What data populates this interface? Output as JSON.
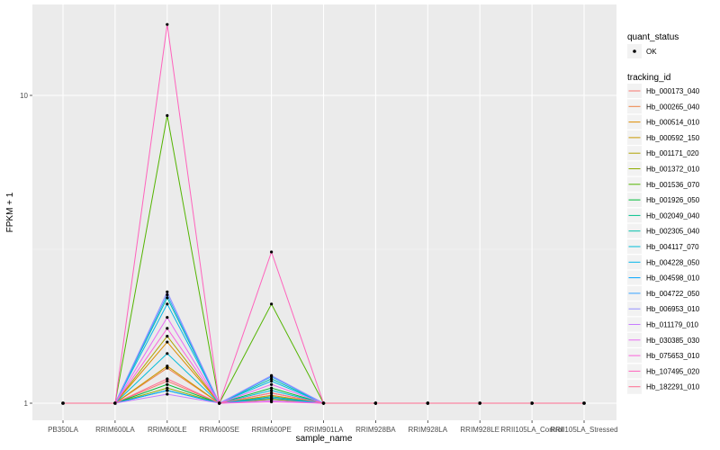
{
  "chart_data": {
    "type": "line",
    "xlabel": "sample_name",
    "ylabel": "FPKM + 1",
    "y_scale": "log10",
    "ylim": [
      0.9,
      17
    ],
    "y_ticks": [
      {
        "value": 1,
        "label": "1"
      },
      {
        "value": 10,
        "label": "10"
      }
    ],
    "grid": true,
    "legend_placement": "right",
    "categories": [
      "PB350LA",
      "RRIM600LA",
      "RRIM600LE",
      "RRIM600SE",
      "RRIM600PE",
      "RRIM901LA",
      "RRIM928BA",
      "RRIM928LA",
      "RRIM928LE",
      "RRII105LA_Control",
      "RRII105LA_Stressed"
    ],
    "point_legend": {
      "title": "quant_status",
      "entries": [
        "OK"
      ]
    },
    "line_legend_title": "tracking_id",
    "series": [
      {
        "name": "Hb_000173_040",
        "color": "#F8766D",
        "values": [
          1,
          1,
          1.18,
          1,
          1.03,
          1,
          1,
          1,
          1,
          1,
          1
        ]
      },
      {
        "name": "Hb_000265_040",
        "color": "#EE8043",
        "values": [
          1,
          1,
          1.3,
          1,
          1.04,
          1,
          1,
          1,
          1,
          1,
          1
        ]
      },
      {
        "name": "Hb_000514_010",
        "color": "#DE8C00",
        "values": [
          1,
          1,
          1.58,
          1,
          1.06,
          1,
          1,
          1,
          1,
          1,
          1
        ]
      },
      {
        "name": "Hb_000592_150",
        "color": "#C99800",
        "values": [
          1,
          1,
          1.32,
          1,
          1.05,
          1,
          1,
          1,
          1,
          1,
          1
        ]
      },
      {
        "name": "Hb_001171_020",
        "color": "#AFA100",
        "values": [
          1,
          1,
          1.65,
          1,
          1.08,
          1,
          1,
          1,
          1,
          1,
          1
        ]
      },
      {
        "name": "Hb_001372_010",
        "color": "#8EAB00",
        "values": [
          1,
          1,
          1.12,
          1,
          1.03,
          1,
          1,
          1,
          1,
          1,
          1
        ]
      },
      {
        "name": "Hb_001536_070",
        "color": "#53B400",
        "values": [
          1,
          1,
          8.6,
          1,
          2.1,
          1,
          1,
          1,
          1,
          1,
          1
        ]
      },
      {
        "name": "Hb_001926_050",
        "color": "#00BA38",
        "values": [
          1,
          1,
          1.15,
          1,
          1.12,
          1,
          1,
          1,
          1,
          1,
          1
        ]
      },
      {
        "name": "Hb_002049_040",
        "color": "#00C08B",
        "values": [
          1,
          1,
          1.1,
          1,
          1.05,
          1,
          1,
          1,
          1,
          1,
          1
        ]
      },
      {
        "name": "Hb_002305_040",
        "color": "#00BFAA",
        "values": [
          1,
          1,
          2.2,
          1,
          1.2,
          1,
          1,
          1,
          1,
          1,
          1
        ]
      },
      {
        "name": "Hb_004117_070",
        "color": "#00BCD8",
        "values": [
          1,
          1,
          1.45,
          1,
          1.1,
          1,
          1,
          1,
          1,
          1,
          1
        ]
      },
      {
        "name": "Hb_004228_050",
        "color": "#00B6EB",
        "values": [
          1,
          1,
          2.1,
          1,
          1.18,
          1,
          1,
          1,
          1,
          1,
          1
        ]
      },
      {
        "name": "Hb_004598_010",
        "color": "#00A5FF",
        "values": [
          1,
          1,
          1.1,
          1,
          1.04,
          1,
          1,
          1,
          1,
          1,
          1
        ]
      },
      {
        "name": "Hb_004722_050",
        "color": "#35A2FF",
        "values": [
          1,
          1,
          2.25,
          1,
          1.22,
          1,
          1,
          1,
          1,
          1,
          1
        ]
      },
      {
        "name": "Hb_006953_010",
        "color": "#9590FF",
        "values": [
          1,
          1,
          2.3,
          1,
          1.23,
          1,
          1,
          1,
          1,
          1,
          1
        ]
      },
      {
        "name": "Hb_011179_010",
        "color": "#C77CFF",
        "values": [
          1,
          1,
          1.07,
          1,
          1.02,
          1,
          1,
          1,
          1,
          1,
          1
        ]
      },
      {
        "name": "Hb_030385_030",
        "color": "#E76BF3",
        "values": [
          1,
          1,
          1.9,
          1,
          1.15,
          1,
          1,
          1,
          1,
          1,
          1
        ]
      },
      {
        "name": "Hb_075653_010",
        "color": "#FA62DB",
        "values": [
          1,
          1,
          1.75,
          1,
          1.01,
          1,
          1,
          1,
          1,
          1,
          1
        ]
      },
      {
        "name": "Hb_107495_020",
        "color": "#FF62BC",
        "values": [
          1,
          1,
          17.0,
          1,
          3.1,
          1,
          1,
          1,
          1,
          1,
          1
        ]
      },
      {
        "name": "Hb_182291_010",
        "color": "#FF6C91",
        "values": [
          1,
          1,
          1.2,
          1,
          1.08,
          1,
          1,
          1,
          1,
          1,
          1
        ]
      }
    ]
  }
}
